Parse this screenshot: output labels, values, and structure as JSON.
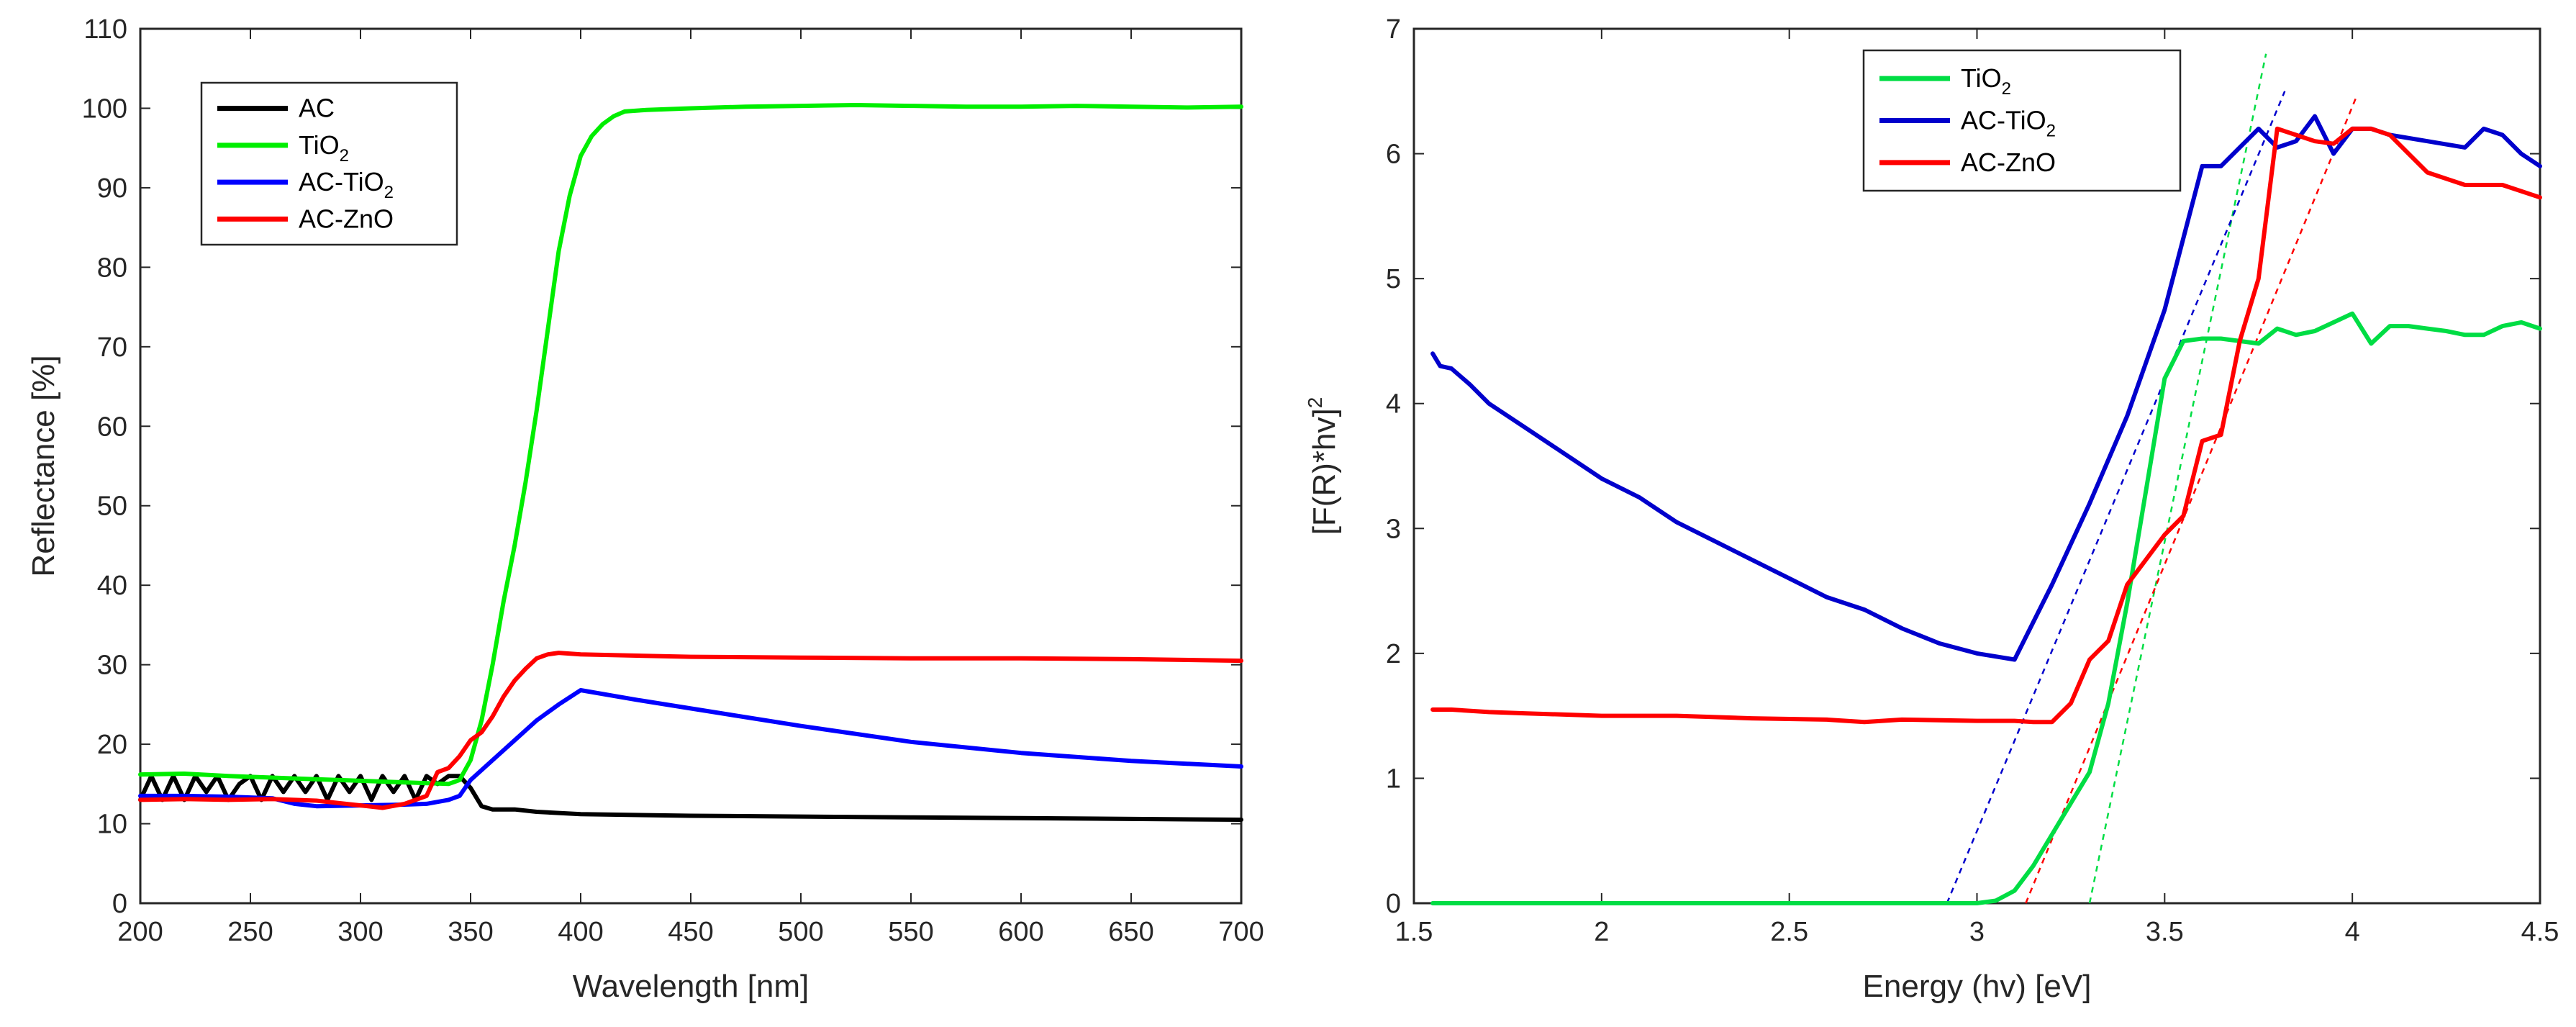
{
  "chart_data": [
    {
      "type": "line",
      "title": "",
      "xlabel": "Wavelength [nm]",
      "ylabel": "Reflectance [%]",
      "xlim": [
        200,
        700
      ],
      "ylim": [
        0,
        110
      ],
      "xticks": [
        200,
        250,
        300,
        350,
        400,
        450,
        500,
        550,
        600,
        650,
        700
      ],
      "yticks": [
        0,
        10,
        20,
        30,
        40,
        50,
        60,
        70,
        80,
        90,
        100,
        110
      ],
      "legend_position": "top-left",
      "series": [
        {
          "name": "AC",
          "legend_main": "AC",
          "legend_sub": "",
          "legend_tail": "",
          "color": "#000000",
          "x": [
            200,
            205,
            210,
            215,
            220,
            225,
            230,
            235,
            240,
            245,
            250,
            255,
            260,
            265,
            270,
            275,
            280,
            285,
            290,
            295,
            300,
            305,
            310,
            315,
            320,
            325,
            330,
            335,
            340,
            345,
            350,
            355,
            360,
            370,
            380,
            400,
            450,
            500,
            550,
            600,
            650,
            700
          ],
          "y": [
            13,
            16,
            13,
            16,
            13,
            16,
            14,
            16,
            13,
            15,
            16,
            13,
            16,
            14,
            16,
            14,
            16,
            13,
            16,
            14,
            16,
            13,
            16,
            14,
            16,
            13,
            16,
            15,
            16,
            16,
            14.5,
            12.2,
            11.8,
            11.8,
            11.5,
            11.2,
            11.0,
            10.9,
            10.8,
            10.7,
            10.6,
            10.5
          ]
        },
        {
          "name": "TiO2",
          "legend_main": "TiO",
          "legend_sub": "2",
          "legend_tail": "",
          "color": "#00ee00",
          "x": [
            200,
            220,
            240,
            260,
            280,
            300,
            320,
            340,
            345,
            350,
            355,
            360,
            365,
            370,
            375,
            380,
            385,
            390,
            395,
            400,
            405,
            410,
            415,
            420,
            430,
            440,
            450,
            475,
            500,
            525,
            550,
            575,
            600,
            625,
            650,
            675,
            700
          ],
          "y": [
            16.2,
            16.3,
            16.0,
            15.8,
            15.6,
            15.4,
            15.2,
            15.0,
            15.5,
            18,
            23,
            30,
            38,
            45,
            53,
            62,
            72,
            82,
            89,
            94,
            96.5,
            98,
            99,
            99.6,
            99.8,
            99.9,
            100,
            100.2,
            100.3,
            100.4,
            100.3,
            100.2,
            100.2,
            100.3,
            100.2,
            100.1,
            100.2
          ]
        },
        {
          "name": "AC-TiO2",
          "legend_main": "AC-TiO",
          "legend_sub": "2",
          "legend_tail": "",
          "color": "#0000ff",
          "x": [
            200,
            220,
            240,
            260,
            270,
            280,
            300,
            320,
            330,
            340,
            345,
            350,
            360,
            370,
            380,
            390,
            400,
            425,
            450,
            500,
            550,
            600,
            650,
            700
          ],
          "y": [
            13.5,
            13.5,
            13.4,
            13.2,
            12.5,
            12.2,
            12.3,
            12.4,
            12.5,
            13,
            13.5,
            15.5,
            18,
            20.5,
            23,
            25,
            26.8,
            25.6,
            24.5,
            22.3,
            20.3,
            18.9,
            17.9,
            17.2
          ]
        },
        {
          "name": "AC-ZnO",
          "legend_main": "AC-ZnO",
          "legend_sub": "",
          "legend_tail": "",
          "color": "#ff0000",
          "x": [
            200,
            220,
            240,
            260,
            280,
            300,
            310,
            320,
            330,
            335,
            340,
            345,
            350,
            355,
            360,
            365,
            370,
            375,
            380,
            385,
            390,
            400,
            450,
            500,
            550,
            600,
            650,
            700
          ],
          "y": [
            13,
            13.1,
            13.0,
            13.1,
            12.9,
            12.3,
            12.0,
            12.5,
            13.5,
            16.5,
            17.0,
            18.5,
            20.5,
            21.5,
            23.5,
            26,
            28,
            29.5,
            30.8,
            31.3,
            31.5,
            31.3,
            31.0,
            30.9,
            30.8,
            30.8,
            30.7,
            30.5
          ]
        }
      ]
    },
    {
      "type": "line",
      "title": "",
      "xlabel": "Energy (hv) [eV]",
      "ylabel": "[F(R)*hv]",
      "ylabel_sup": "2",
      "xlim": [
        1.5,
        4.5
      ],
      "ylim": [
        0,
        7
      ],
      "xticks": [
        1.5,
        2,
        2.5,
        3,
        3.5,
        4,
        4.5
      ],
      "xtick_labels": [
        "1.5",
        "2",
        "2.5",
        "3",
        "3.5",
        "4",
        "4.5"
      ],
      "yticks": [
        0,
        1,
        2,
        3,
        4,
        5,
        6,
        7
      ],
      "legend_position": "top-center",
      "series": [
        {
          "name": "TiO2",
          "legend_main": "TiO",
          "legend_sub": "2",
          "legend_tail": "",
          "color": "#00dd44",
          "x": [
            1.55,
            2.0,
            2.5,
            3.0,
            3.05,
            3.1,
            3.15,
            3.2,
            3.25,
            3.3,
            3.35,
            3.4,
            3.45,
            3.5,
            3.55,
            3.6,
            3.65,
            3.7,
            3.75,
            3.8,
            3.85,
            3.9,
            3.95,
            4.0,
            4.05,
            4.1,
            4.15,
            4.2,
            4.25,
            4.3,
            4.35,
            4.4,
            4.45,
            4.5
          ],
          "y": [
            0,
            0,
            0,
            0,
            0.02,
            0.1,
            0.3,
            0.55,
            0.8,
            1.05,
            1.6,
            2.4,
            3.3,
            4.2,
            4.5,
            4.52,
            4.52,
            4.5,
            4.48,
            4.6,
            4.55,
            4.58,
            4.65,
            4.72,
            4.48,
            4.62,
            4.62,
            4.6,
            4.58,
            4.55,
            4.55,
            4.62,
            4.65,
            4.6
          ]
        },
        {
          "name": "AC-TiO2",
          "legend_main": "AC-TiO",
          "legend_sub": "2",
          "legend_tail": "",
          "color": "#0000cc",
          "x": [
            1.55,
            1.57,
            1.6,
            1.65,
            1.7,
            1.8,
            1.9,
            2.0,
            2.1,
            2.2,
            2.3,
            2.4,
            2.5,
            2.6,
            2.7,
            2.8,
            2.9,
            3.0,
            3.1,
            3.2,
            3.3,
            3.4,
            3.5,
            3.6,
            3.65,
            3.7,
            3.75,
            3.8,
            3.85,
            3.9,
            3.95,
            4.0,
            4.05,
            4.1,
            4.2,
            4.3,
            4.35,
            4.4,
            4.45,
            4.5
          ],
          "y": [
            4.4,
            4.3,
            4.28,
            4.15,
            4.0,
            3.8,
            3.6,
            3.4,
            3.25,
            3.05,
            2.9,
            2.75,
            2.6,
            2.45,
            2.35,
            2.2,
            2.08,
            2.0,
            1.95,
            2.55,
            3.2,
            3.9,
            4.75,
            5.9,
            5.9,
            6.05,
            6.2,
            6.05,
            6.1,
            6.3,
            6.0,
            6.2,
            6.2,
            6.15,
            6.1,
            6.05,
            6.2,
            6.15,
            6.0,
            5.9
          ]
        },
        {
          "name": "AC-ZnO",
          "legend_main": "AC-ZnO",
          "legend_sub": "",
          "legend_tail": "",
          "color": "#ff0000",
          "x": [
            1.55,
            1.6,
            1.7,
            1.8,
            2.0,
            2.2,
            2.4,
            2.6,
            2.7,
            2.8,
            3.0,
            3.1,
            3.15,
            3.2,
            3.25,
            3.3,
            3.35,
            3.4,
            3.45,
            3.5,
            3.55,
            3.6,
            3.65,
            3.7,
            3.75,
            3.8,
            3.85,
            3.9,
            3.95,
            4.0,
            4.05,
            4.1,
            4.15,
            4.2,
            4.25,
            4.3,
            4.4,
            4.5
          ],
          "y": [
            1.55,
            1.55,
            1.53,
            1.52,
            1.5,
            1.5,
            1.48,
            1.47,
            1.45,
            1.47,
            1.46,
            1.46,
            1.45,
            1.45,
            1.6,
            1.95,
            2.1,
            2.55,
            2.75,
            2.95,
            3.1,
            3.7,
            3.75,
            4.5,
            5.0,
            6.2,
            6.15,
            6.1,
            6.08,
            6.2,
            6.2,
            6.15,
            6.0,
            5.85,
            5.8,
            5.75,
            5.75,
            5.65
          ]
        }
      ],
      "fit_lines": [
        {
          "name": "TiO2-fit",
          "color": "#00dd44",
          "x": [
            3.3,
            3.77
          ],
          "y": [
            0,
            6.8
          ]
        },
        {
          "name": "AC-TiO2-fit",
          "color": "#0000cc",
          "x": [
            2.92,
            3.82
          ],
          "y": [
            0,
            6.5
          ]
        },
        {
          "name": "AC-ZnO-fit",
          "color": "#ff0000",
          "x": [
            3.13,
            4.01
          ],
          "y": [
            0,
            6.45
          ]
        }
      ]
    }
  ]
}
